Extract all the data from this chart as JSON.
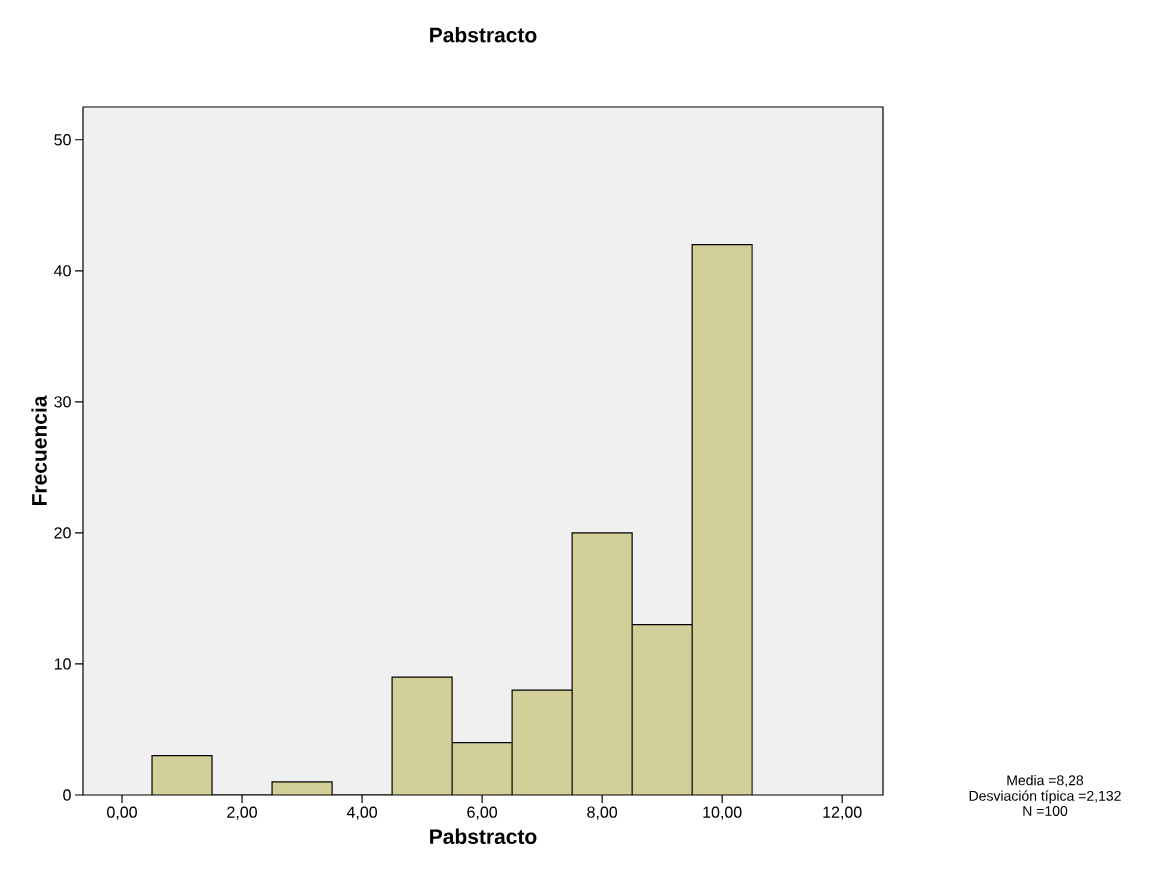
{
  "chart_data": {
    "type": "histogram",
    "title": "Pabstracto",
    "xlabel": "Pabstracto",
    "ylabel": "Frecuencia",
    "bins": [
      0.5,
      1.5,
      2.5,
      3.5,
      4.5,
      5.5,
      6.5,
      7.5,
      8.5,
      9.5,
      10.5
    ],
    "values": [
      3,
      0,
      1,
      0,
      9,
      4,
      8,
      20,
      13,
      42
    ],
    "color": "#d3cf98",
    "xlim": [
      -0.65,
      12.68
    ],
    "ylim": [
      0,
      52.5
    ],
    "xticks": [
      {
        "value": 0,
        "label": "0,00"
      },
      {
        "value": 2,
        "label": "2,00"
      },
      {
        "value": 4,
        "label": "4,00"
      },
      {
        "value": 6,
        "label": "6,00"
      },
      {
        "value": 8,
        "label": "8,00"
      },
      {
        "value": 10,
        "label": "10,00"
      },
      {
        "value": 12,
        "label": "12,00"
      }
    ],
    "yticks": [
      0,
      10,
      20,
      30,
      40,
      50
    ],
    "annotations": [
      "Media =8,28",
      "Desviación típica =2,132",
      "N =100"
    ]
  }
}
